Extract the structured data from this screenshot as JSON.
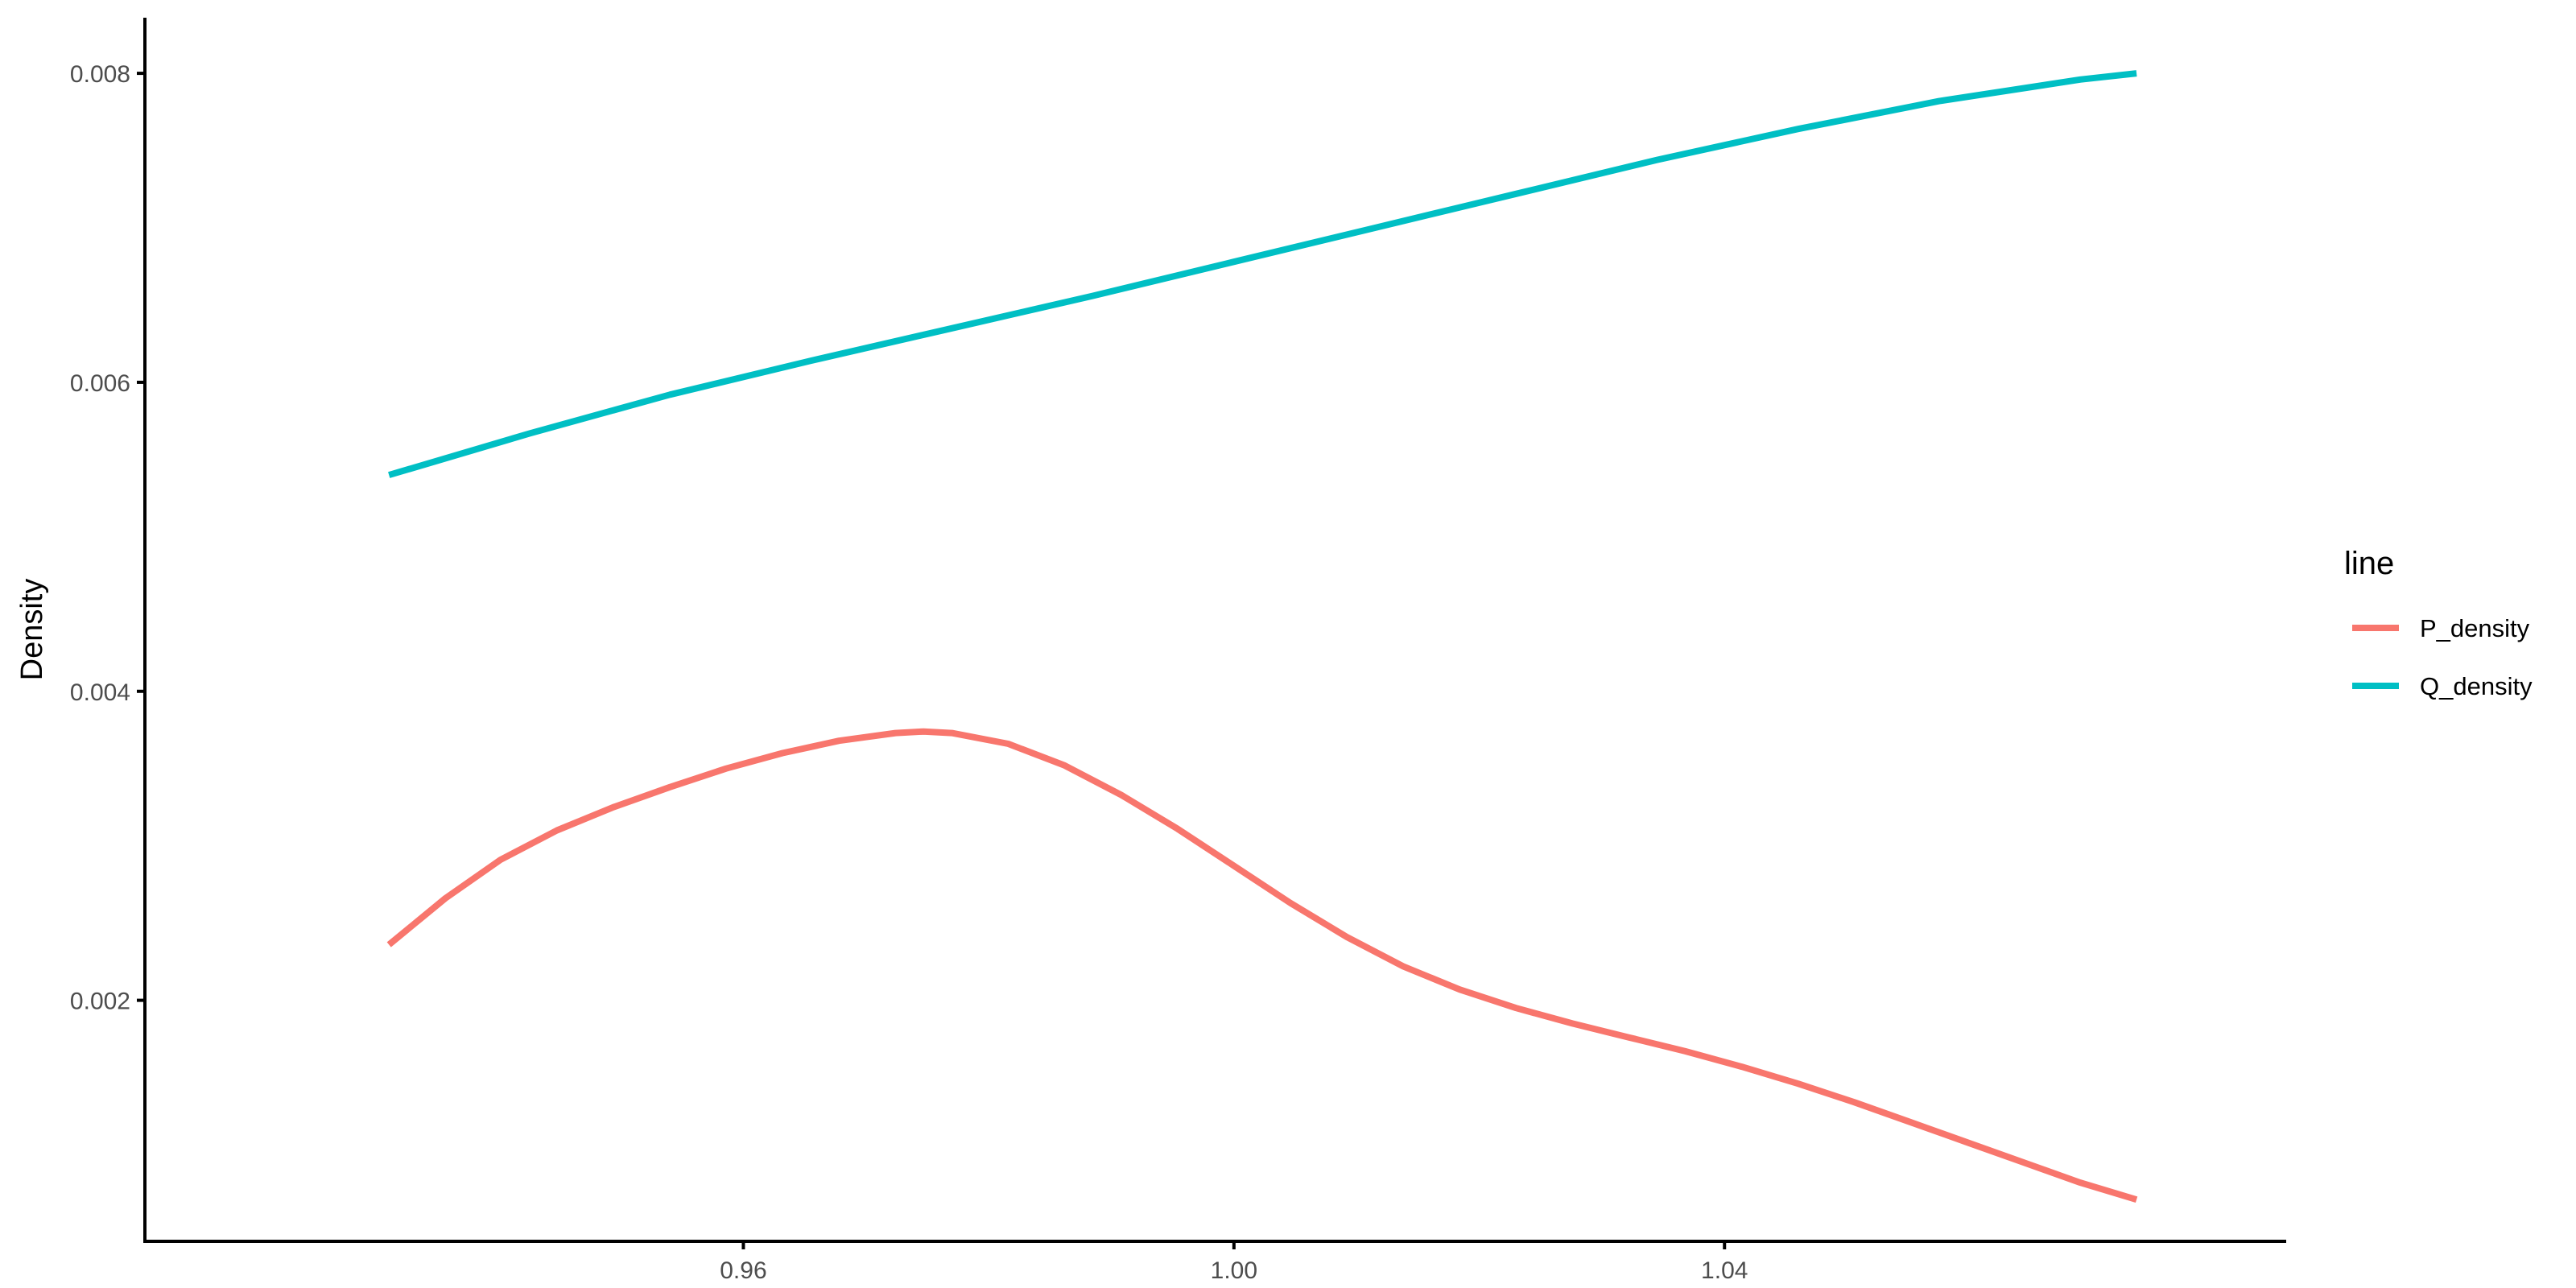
{
  "chart_data": {
    "type": "line",
    "title": "",
    "xlabel": "",
    "ylabel": "Density",
    "xlim": [
      0.9112,
      1.0858
    ],
    "ylim": [
      0.00044,
      0.00836
    ],
    "xticks": [
      0.96,
      1.0,
      1.04
    ],
    "xtick_labels": [
      "0.96",
      "1.00",
      "1.04"
    ],
    "yticks": [
      0.002,
      0.004,
      0.006,
      0.008
    ],
    "ytick_labels": [
      "0.002",
      "0.004",
      "0.006",
      "0.008"
    ],
    "grid": false,
    "legend": {
      "title": "line",
      "position": "right"
    },
    "series": [
      {
        "name": "P_density",
        "color": "#F8766D",
        "points": [
          [
            0.9311,
            0.00236
          ],
          [
            0.9357,
            0.00266
          ],
          [
            0.9402,
            0.00291
          ],
          [
            0.9448,
            0.0031
          ],
          [
            0.9494,
            0.00325
          ],
          [
            0.954,
            0.00338
          ],
          [
            0.9586,
            0.0035
          ],
          [
            0.9632,
            0.0036
          ],
          [
            0.9678,
            0.00368
          ],
          [
            0.9724,
            0.00373
          ],
          [
            0.9747,
            0.00374
          ],
          [
            0.977,
            0.00373
          ],
          [
            0.9816,
            0.00366
          ],
          [
            0.9862,
            0.00352
          ],
          [
            0.9908,
            0.00333
          ],
          [
            0.9954,
            0.00311
          ],
          [
            1.0,
            0.00287
          ],
          [
            1.0046,
            0.00263
          ],
          [
            1.0092,
            0.00241
          ],
          [
            1.0138,
            0.00222
          ],
          [
            1.0184,
            0.00207
          ],
          [
            1.023,
            0.00195
          ],
          [
            1.0276,
            0.00185
          ],
          [
            1.0322,
            0.00176
          ],
          [
            1.0368,
            0.00167
          ],
          [
            1.0414,
            0.00157
          ],
          [
            1.046,
            0.00146
          ],
          [
            1.0506,
            0.00134
          ],
          [
            1.0552,
            0.00121
          ],
          [
            1.0598,
            0.00108
          ],
          [
            1.0644,
            0.00095
          ],
          [
            1.069,
            0.00082
          ],
          [
            1.0736,
            0.00071
          ]
        ]
      },
      {
        "name": "Q_density",
        "color": "#00BFC4",
        "points": [
          [
            0.9311,
            0.0054
          ],
          [
            0.9426,
            0.00567
          ],
          [
            0.954,
            0.00592
          ],
          [
            0.9655,
            0.00614
          ],
          [
            0.977,
            0.00635
          ],
          [
            0.9885,
            0.00656
          ],
          [
            1.0,
            0.00678
          ],
          [
            1.0115,
            0.007
          ],
          [
            1.023,
            0.00722
          ],
          [
            1.0345,
            0.00744
          ],
          [
            1.046,
            0.00764
          ],
          [
            1.0575,
            0.00782
          ],
          [
            1.069,
            0.00796
          ],
          [
            1.0736,
            0.008
          ]
        ]
      }
    ]
  }
}
